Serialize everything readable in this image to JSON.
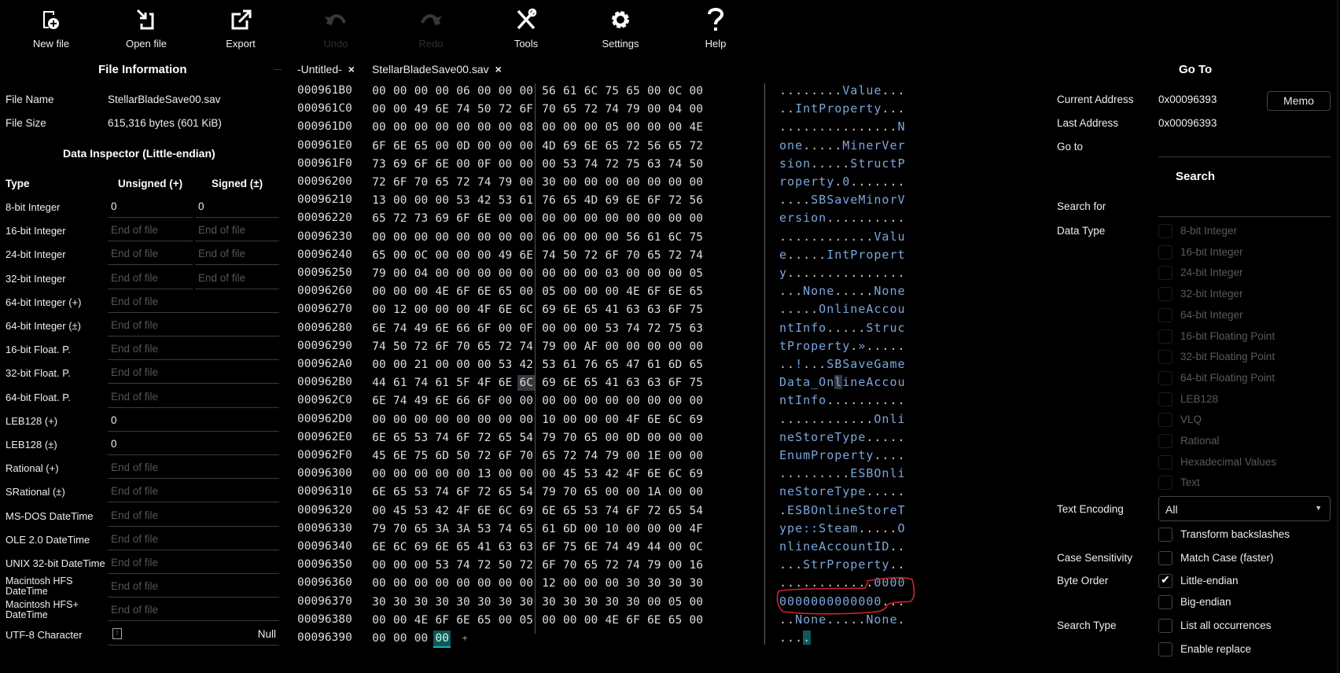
{
  "toolbar": [
    {
      "label": "New file",
      "icon": "new-file-icon",
      "enabled": true
    },
    {
      "label": "Open file",
      "icon": "open-file-icon",
      "enabled": true
    },
    {
      "label": "Export",
      "icon": "export-icon",
      "enabled": true
    },
    {
      "label": "Undo",
      "icon": "undo-icon",
      "enabled": false
    },
    {
      "label": "Redo",
      "icon": "redo-icon",
      "enabled": false
    },
    {
      "label": "Tools",
      "icon": "tools-icon",
      "enabled": true
    },
    {
      "label": "Settings",
      "icon": "gear-icon",
      "enabled": true
    },
    {
      "label": "Help",
      "icon": "help-icon",
      "enabled": true
    }
  ],
  "tabs": [
    {
      "label": "-Untitled-",
      "close": "×"
    },
    {
      "label": "StellarBladeSave00.sav",
      "close": "×"
    }
  ],
  "file_info": {
    "title": "File Information",
    "name_label": "File Name",
    "name": "StellarBladeSave00.sav",
    "size_label": "File Size",
    "size": "615,316 bytes (601 KiB)"
  },
  "inspector": {
    "title": "Data Inspector (Little-endian)",
    "col_type": "Type",
    "col_unsigned": "Unsigned (+)",
    "col_signed": "Signed (±)",
    "rows": [
      {
        "type": "8-bit Integer",
        "unsigned": "0",
        "signed": "0"
      },
      {
        "type": "16-bit Integer",
        "unsigned": "End of file",
        "signed": "End of file"
      },
      {
        "type": "24-bit Integer",
        "unsigned": "End of file",
        "signed": "End of file"
      },
      {
        "type": "32-bit Integer",
        "unsigned": "End of file",
        "signed": "End of file"
      },
      {
        "type": "64-bit Integer (+)",
        "unsigned": "End of file"
      },
      {
        "type": "64-bit Integer (±)",
        "unsigned": "End of file"
      },
      {
        "type": "16-bit Float. P.",
        "unsigned": "End of file"
      },
      {
        "type": "32-bit Float. P.",
        "unsigned": "End of file"
      },
      {
        "type": "64-bit Float. P.",
        "unsigned": "End of file"
      },
      {
        "type": "LEB128 (+)",
        "unsigned": "0"
      },
      {
        "type": "LEB128 (±)",
        "unsigned": "0"
      },
      {
        "type": "Rational (+)",
        "unsigned": "End of file"
      },
      {
        "type": "SRational (±)",
        "unsigned": "End of file"
      },
      {
        "type": "MS-DOS DateTime",
        "unsigned": "End of file"
      },
      {
        "type": "OLE 2.0 DateTime",
        "unsigned": "End of file"
      },
      {
        "type": "UNIX 32-bit DateTime",
        "unsigned": "End of file"
      },
      {
        "type": "Macintosh HFS DateTime",
        "unsigned": "End of file"
      },
      {
        "type": "Macintosh HFS+ DateTime",
        "unsigned": "End of file"
      },
      {
        "type": "UTF-8 Character",
        "unsigned": "Null"
      }
    ]
  },
  "hex": {
    "rows": [
      {
        "addr": "000961B0",
        "bytes": "00 00 00 00 06 00 00 00 56 61 6C 75 65 00 0C 00",
        "ascii": "........Value..."
      },
      {
        "addr": "000961C0",
        "bytes": "00 00 49 6E 74 50 72 6F 70 65 72 74 79 00 04 00",
        "ascii": "..IntProperty..."
      },
      {
        "addr": "000961D0",
        "bytes": "00 00 00 00 00 00 00 08 00 00 00 05 00 00 00 4E",
        "ascii": "...............N"
      },
      {
        "addr": "000961E0",
        "bytes": "6F 6E 65 00 0D 00 00 00 4D 69 6E 65 72 56 65 72",
        "ascii": "one.....MinerVer"
      },
      {
        "addr": "000961F0",
        "bytes": "73 69 6F 6E 00 0F 00 00 00 53 74 72 75 63 74 50",
        "ascii": "sion.....StructP"
      },
      {
        "addr": "00096200",
        "bytes": "72 6F 70 65 72 74 79 00 30 00 00 00 00 00 00 00",
        "ascii": "roperty.0......."
      },
      {
        "addr": "00096210",
        "bytes": "13 00 00 00 53 42 53 61 76 65 4D 69 6E 6F 72 56",
        "ascii": "....SBSaveMinorV"
      },
      {
        "addr": "00096220",
        "bytes": "65 72 73 69 6F 6E 00 00 00 00 00 00 00 00 00 00",
        "ascii": "ersion.........."
      },
      {
        "addr": "00096230",
        "bytes": "00 00 00 00 00 00 00 00 06 00 00 00 56 61 6C 75",
        "ascii": "............Valu"
      },
      {
        "addr": "00096240",
        "bytes": "65 00 0C 00 00 00 49 6E 74 50 72 6F 70 65 72 74",
        "ascii": "e.....IntPropert"
      },
      {
        "addr": "00096250",
        "bytes": "79 00 04 00 00 00 00 00 00 00 00 03 00 00 00 05",
        "ascii": "y..............."
      },
      {
        "addr": "00096260",
        "bytes": "00 00 00 4E 6F 6E 65 00 05 00 00 00 4E 6F 6E 65",
        "ascii": "...None.....None"
      },
      {
        "addr": "00096270",
        "bytes": "00 12 00 00 00 4F 6E 6C 69 6E 65 41 63 63 6F 75",
        "ascii": ".....OnlineAccou"
      },
      {
        "addr": "00096280",
        "bytes": "6E 74 49 6E 66 6F 00 0F 00 00 00 53 74 72 75 63",
        "ascii": "ntInfo.....Struc"
      },
      {
        "addr": "00096290",
        "bytes": "74 50 72 6F 70 65 72 74 79 00 AF 00 00 00 00 00",
        "ascii": "tProperty.»....."
      },
      {
        "addr": "000962A0",
        "bytes": "00 00 21 00 00 00 53 42 53 61 76 65 47 61 6D 65",
        "ascii": "..!...SBSaveGame"
      },
      {
        "addr": "000962B0",
        "bytes": "44 61 74 61 5F 4F 6E 6C 69 6E 65 41 63 63 6F 75",
        "ascii": "Data_OnlineAccou",
        "sel": 7
      },
      {
        "addr": "000962C0",
        "bytes": "6E 74 49 6E 66 6F 00 00 00 00 00 00 00 00 00 00",
        "ascii": "ntInfo.........."
      },
      {
        "addr": "000962D0",
        "bytes": "00 00 00 00 00 00 00 00 10 00 00 00 4F 6E 6C 69",
        "ascii": "............Onli"
      },
      {
        "addr": "000962E0",
        "bytes": "6E 65 53 74 6F 72 65 54 79 70 65 00 0D 00 00 00",
        "ascii": "neStoreType....."
      },
      {
        "addr": "000962F0",
        "bytes": "45 6E 75 6D 50 72 6F 70 65 72 74 79 00 1E 00 00",
        "ascii": "EnumProperty...."
      },
      {
        "addr": "00096300",
        "bytes": "00 00 00 00 00 13 00 00 00 45 53 42 4F 6E 6C 69",
        "ascii": ".........ESBOnli"
      },
      {
        "addr": "00096310",
        "bytes": "6E 65 53 74 6F 72 65 54 79 70 65 00 00 1A 00 00",
        "ascii": "neStoreType....."
      },
      {
        "addr": "00096320",
        "bytes": "00 45 53 42 4F 6E 6C 69 6E 65 53 74 6F 72 65 54",
        "ascii": ".ESBOnlineStoreT"
      },
      {
        "addr": "00096330",
        "bytes": "79 70 65 3A 3A 53 74 65 61 6D 00 10 00 00 00 4F",
        "ascii": "ype::Steam.....O"
      },
      {
        "addr": "00096340",
        "bytes": "6E 6C 69 6E 65 41 63 63 6F 75 6E 74 49 44 00 0C",
        "ascii": "nlineAccountID.."
      },
      {
        "addr": "00096350",
        "bytes": "00 00 00 53 74 72 50 72 6F 70 65 72 74 79 00 16",
        "ascii": "...StrProperty.."
      },
      {
        "addr": "00096360",
        "bytes": "00 00 00 00 00 00 00 00 12 00 00 00 30 30 30 30",
        "ascii": "............0000"
      },
      {
        "addr": "00096370",
        "bytes": "30 30 30 30 30 30 30 30 30 30 30 30 30 00 05 00",
        "ascii": "0000000000000..."
      },
      {
        "addr": "00096380",
        "bytes": "00 00 4E 6F 6E 65 00 05 00 00 00 4E 6F 6E 65 00",
        "ascii": "..None.....None."
      },
      {
        "addr": "00096390",
        "bytes": "00 00 00 00",
        "ascii": "....",
        "cur": 3
      }
    ],
    "append_symbol": "+"
  },
  "goto": {
    "title": "Go To",
    "current_label": "Current Address",
    "current": "0x00096393",
    "memo": "Memo",
    "last_label": "Last Address",
    "last": "0x00096393",
    "goto_label": "Go to",
    "goto_value": ""
  },
  "search": {
    "title": "Search",
    "search_for_label": "Search for",
    "search_for_value": "",
    "data_type_label": "Data Type",
    "data_types": [
      "8-bit Integer",
      "16-bit Integer",
      "24-bit Integer",
      "32-bit Integer",
      "64-bit Integer",
      "16-bit Floating Point",
      "32-bit Floating Point",
      "64-bit Floating Point",
      "LEB128",
      "VLQ",
      "Rational",
      "Hexadecimal Values",
      "Text"
    ],
    "text_encoding_label": "Text Encoding",
    "text_encoding": "All",
    "options": [
      {
        "group": "",
        "label": "Transform backslashes",
        "checked": false
      },
      {
        "group": "Case Sensitivity",
        "label": "Match Case (faster)",
        "checked": false
      },
      {
        "group": "Byte Order",
        "label": "Little-endian",
        "checked": true
      },
      {
        "group": "",
        "label": "Big-endian",
        "checked": false
      },
      {
        "group": "Search Type",
        "label": "List all occurrences",
        "checked": false
      },
      {
        "group": "",
        "label": "Enable replace",
        "checked": false
      }
    ]
  },
  "colors": {
    "background": "#000000",
    "ascii_printable": "#7aa6dc",
    "cursor": "#11575a",
    "annotation": "#d0232e"
  }
}
